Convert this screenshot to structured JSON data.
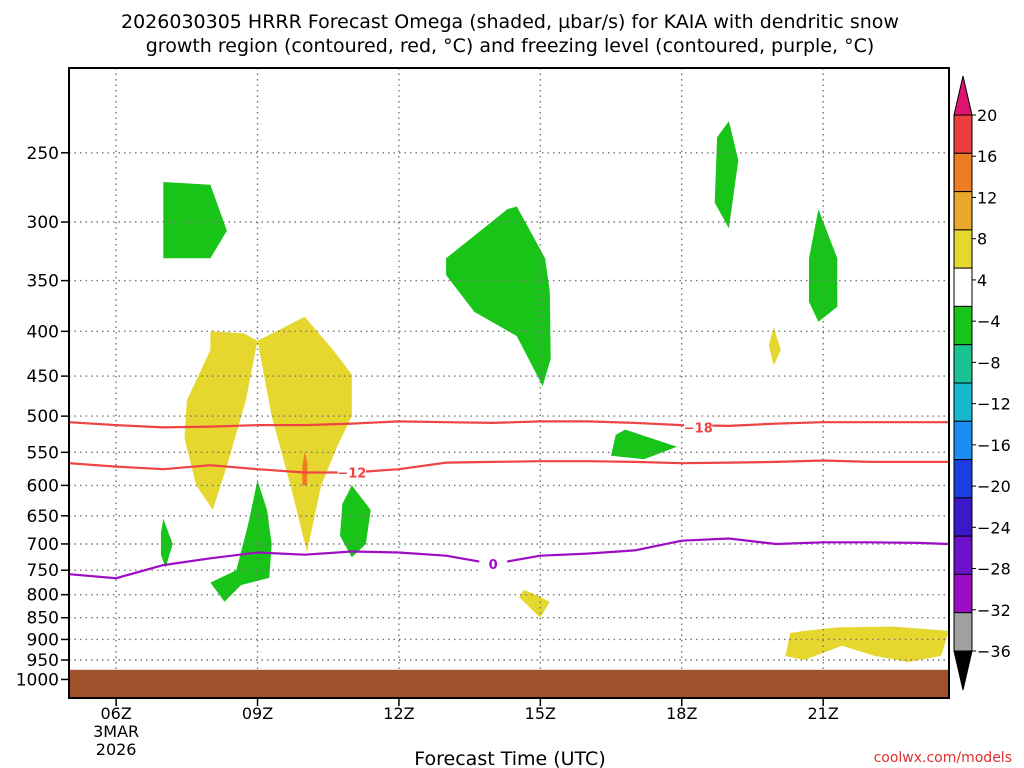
{
  "chart_data": {
    "type": "heatmap",
    "title_line1": "2026030305 HRRR Forecast Omega (shaded, µbar/s) for KAIA with dendritic snow",
    "title_line2": "growth region (contoured, red, °C) and freezing level (contoured, purple, °C)",
    "xlabel": "Forecast Time (UTC)",
    "x_range": [
      5.0,
      23.67
    ],
    "x_ticks": [
      {
        "hour": 6,
        "label": "06Z",
        "sub1": "3MAR",
        "sub2": "2026"
      },
      {
        "hour": 9,
        "label": "09Z"
      },
      {
        "hour": 12,
        "label": "12Z"
      },
      {
        "hour": 15,
        "label": "15Z"
      },
      {
        "hour": 18,
        "label": "18Z"
      },
      {
        "hour": 21,
        "label": "21Z"
      }
    ],
    "y_range_hpa": [
      200,
      1050
    ],
    "y_scale": "log",
    "y_ticks": [
      250,
      300,
      350,
      400,
      450,
      500,
      550,
      600,
      650,
      700,
      750,
      800,
      850,
      900,
      950,
      1000
    ],
    "grid": true,
    "ground_level_hpa": 975,
    "colorbar": {
      "colors": [
        "#000000",
        "#a0a0a0",
        "#9b0cc4",
        "#6a11c9",
        "#3b18c8",
        "#1a3ee0",
        "#1a8ef0",
        "#16b8cf",
        "#19c394",
        "#18c418",
        "#ffffff",
        "#e6d72e",
        "#e9a82b",
        "#ec7d22",
        "#ec3e3e",
        "#e0146f"
      ],
      "labels": [
        "20",
        "16",
        "12",
        "8",
        "4",
        "−4",
        "−8",
        "−12",
        "−16",
        "−20",
        "−24",
        "−28",
        "−32",
        "−36"
      ]
    },
    "contours": [
      {
        "label": "−18",
        "color": "#ee4444",
        "label_at": {
          "hour": 18.35,
          "hpa": 515
        },
        "points": [
          [
            5.0,
            508
          ],
          [
            6,
            512
          ],
          [
            7,
            515
          ],
          [
            8,
            514
          ],
          [
            9,
            512
          ],
          [
            10,
            512
          ],
          [
            11,
            510
          ],
          [
            12,
            507
          ],
          [
            13,
            508
          ],
          [
            14,
            509
          ],
          [
            15,
            507
          ],
          [
            16,
            507
          ],
          [
            17,
            509
          ],
          [
            18,
            512
          ],
          [
            19,
            513
          ],
          [
            20,
            510
          ],
          [
            21,
            508
          ],
          [
            22,
            508
          ],
          [
            23,
            508
          ],
          [
            23.67,
            508
          ]
        ]
      },
      {
        "label": "−12",
        "color": "#ee4444",
        "label_at": {
          "hour": 11.0,
          "hpa": 580
        },
        "points": [
          [
            5.0,
            566
          ],
          [
            6,
            571
          ],
          [
            7,
            575
          ],
          [
            8,
            569
          ],
          [
            9,
            575
          ],
          [
            10,
            580
          ],
          [
            11,
            580
          ],
          [
            12,
            575
          ],
          [
            13,
            565
          ],
          [
            14,
            564
          ],
          [
            15,
            563
          ],
          [
            16,
            563
          ],
          [
            17,
            564
          ],
          [
            18,
            566
          ],
          [
            19,
            565
          ],
          [
            20,
            564
          ],
          [
            21,
            562
          ],
          [
            22,
            564
          ],
          [
            23,
            564
          ],
          [
            23.67,
            564
          ]
        ]
      },
      {
        "label": "0",
        "color": "#9e0cc4",
        "label_at": {
          "hour": 14.0,
          "hpa": 738
        },
        "points": [
          [
            5.0,
            758
          ],
          [
            6,
            766
          ],
          [
            7,
            740
          ],
          [
            8,
            727
          ],
          [
            9,
            716
          ],
          [
            10,
            720
          ],
          [
            11,
            714
          ],
          [
            12,
            716
          ],
          [
            13,
            722
          ],
          [
            14,
            738
          ],
          [
            15,
            722
          ],
          [
            16,
            718
          ],
          [
            17,
            712
          ],
          [
            18,
            694
          ],
          [
            19,
            690
          ],
          [
            20,
            700
          ],
          [
            21,
            697
          ],
          [
            22,
            697
          ],
          [
            23,
            698
          ],
          [
            23.67,
            700
          ]
        ]
      }
    ],
    "shaded_regions": [
      {
        "color": "#18c418",
        "points": [
          [
            7.0,
            270
          ],
          [
            8.0,
            272
          ],
          [
            8.35,
            307
          ],
          [
            8.0,
            330
          ],
          [
            7.0,
            330
          ]
        ]
      },
      {
        "color": "#18c418",
        "points": [
          [
            14.5,
            288
          ],
          [
            15.1,
            330
          ],
          [
            15.2,
            360
          ],
          [
            15.22,
            430
          ],
          [
            15.05,
            462
          ],
          [
            14.5,
            405
          ],
          [
            13.6,
            380
          ],
          [
            13.0,
            345
          ],
          [
            13.0,
            330
          ],
          [
            14.3,
            290
          ]
        ]
      },
      {
        "color": "#18c418",
        "points": [
          [
            19.0,
            230
          ],
          [
            19.2,
            255
          ],
          [
            19.0,
            305
          ],
          [
            18.7,
            285
          ],
          [
            18.75,
            240
          ]
        ]
      },
      {
        "color": "#18c418",
        "points": [
          [
            20.9,
            290
          ],
          [
            21.3,
            330
          ],
          [
            21.3,
            375
          ],
          [
            20.9,
            390
          ],
          [
            20.7,
            370
          ],
          [
            20.7,
            330
          ]
        ]
      },
      {
        "color": "#18c418",
        "points": [
          [
            16.8,
            518
          ],
          [
            17.9,
            542
          ],
          [
            17.2,
            560
          ],
          [
            16.5,
            555
          ],
          [
            16.6,
            525
          ]
        ]
      },
      {
        "color": "#18c418",
        "points": [
          [
            7.0,
            655
          ],
          [
            7.2,
            700
          ],
          [
            7.05,
            745
          ],
          [
            6.95,
            720
          ],
          [
            6.95,
            680
          ]
        ]
      },
      {
        "color": "#18c418",
        "points": [
          [
            9.0,
            592
          ],
          [
            9.2,
            640
          ],
          [
            9.3,
            700
          ],
          [
            9.25,
            765
          ],
          [
            8.65,
            780
          ],
          [
            8.3,
            815
          ],
          [
            8.0,
            775
          ],
          [
            8.55,
            750
          ],
          [
            8.8,
            665
          ]
        ]
      },
      {
        "color": "#18c418",
        "points": [
          [
            11.0,
            600
          ],
          [
            11.4,
            640
          ],
          [
            11.3,
            700
          ],
          [
            11.0,
            725
          ],
          [
            10.75,
            685
          ],
          [
            10.8,
            630
          ]
        ]
      },
      {
        "color": "#e6d72e",
        "points": [
          [
            8.0,
            400
          ],
          [
            8.0,
            420
          ],
          [
            7.5,
            480
          ],
          [
            7.45,
            530
          ],
          [
            7.7,
            600
          ],
          [
            8.05,
            640
          ],
          [
            8.35,
            570
          ],
          [
            8.75,
            480
          ],
          [
            9.0,
            410
          ],
          [
            8.7,
            402
          ],
          [
            8.0,
            400
          ]
        ]
      },
      {
        "color": "#e6d72e",
        "points": [
          [
            10.0,
            385
          ],
          [
            10.6,
            420
          ],
          [
            11.0,
            448
          ],
          [
            11.0,
            500
          ],
          [
            10.7,
            540
          ],
          [
            10.35,
            600
          ],
          [
            10.05,
            715
          ],
          [
            9.7,
            600
          ],
          [
            9.3,
            500
          ],
          [
            9.0,
            410
          ],
          [
            9.4,
            400
          ]
        ]
      },
      {
        "color": "#ec7d22",
        "points": [
          [
            10.0,
            550
          ],
          [
            10.06,
            565
          ],
          [
            10.05,
            600
          ],
          [
            9.95,
            600
          ],
          [
            9.95,
            570
          ]
        ]
      },
      {
        "color": "#e6d72e",
        "points": [
          [
            19.95,
            395
          ],
          [
            20.1,
            420
          ],
          [
            19.95,
            438
          ],
          [
            19.85,
            415
          ]
        ]
      },
      {
        "color": "#e6d72e",
        "points": [
          [
            14.65,
            790
          ],
          [
            14.9,
            800
          ],
          [
            15.2,
            815
          ],
          [
            15.0,
            850
          ],
          [
            14.65,
            815
          ],
          [
            14.55,
            805
          ]
        ]
      },
      {
        "color": "#e6d72e",
        "points": [
          [
            20.6,
            880
          ],
          [
            21.3,
            872
          ],
          [
            22.5,
            870
          ],
          [
            23.67,
            880
          ],
          [
            23.5,
            940
          ],
          [
            22.8,
            955
          ],
          [
            22.1,
            940
          ],
          [
            21.4,
            915
          ],
          [
            20.6,
            950
          ],
          [
            20.2,
            940
          ],
          [
            20.3,
            885
          ]
        ]
      }
    ]
  },
  "footer": {
    "credit": "coolwx.com/models"
  },
  "colors": {
    "ground": "#a0522d",
    "frame": "#000000",
    "grid": "#777777"
  }
}
